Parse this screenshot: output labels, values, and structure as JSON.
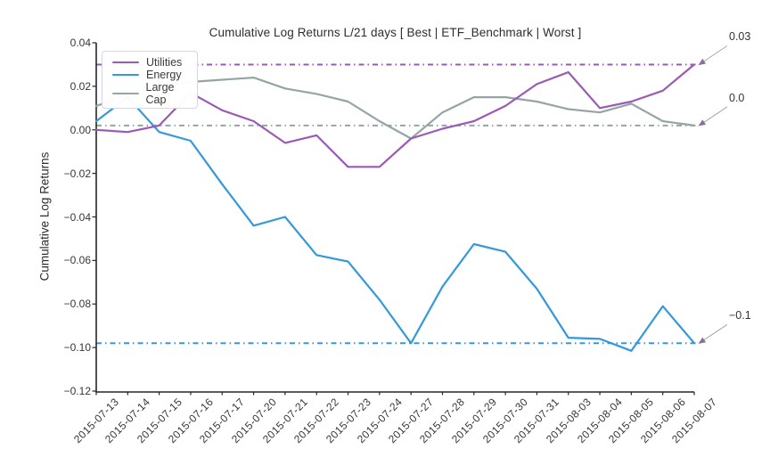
{
  "figure": {
    "title": "Cumulative Log Returns L/21 days [ Best | ETF_Benchmark | Worst ]",
    "ylabel": "Cumulative Log Returns"
  },
  "chart_data": {
    "type": "line",
    "title": "Cumulative Log Returns L/21 days [ Best | ETF_Benchmark | Worst ]",
    "xlabel": "",
    "ylabel": "Cumulative Log Returns",
    "ylim": [
      -0.12,
      0.04
    ],
    "grid": false,
    "legend_position": "upper left",
    "x": [
      "2015-07-13",
      "2015-07-14",
      "2015-07-15",
      "2015-07-16",
      "2015-07-17",
      "2015-07-20",
      "2015-07-21",
      "2015-07-22",
      "2015-07-23",
      "2015-07-24",
      "2015-07-27",
      "2015-07-28",
      "2015-07-29",
      "2015-07-30",
      "2015-07-31",
      "2015-08-03",
      "2015-08-04",
      "2015-08-05",
      "2015-08-06",
      "2015-08-07"
    ],
    "series": [
      {
        "name": "Utilities",
        "color": "#9b59b6",
        "values": [
          0.0,
          -0.001,
          0.002,
          0.017,
          0.009,
          0.004,
          -0.006,
          -0.0025,
          -0.017,
          -0.017,
          -0.004,
          0.0005,
          0.004,
          0.011,
          0.021,
          0.0265,
          0.01,
          0.013,
          0.018,
          0.03
        ]
      },
      {
        "name": "Energy",
        "color": "#3498db",
        "values": [
          0.004,
          0.015,
          -0.001,
          -0.005,
          -0.025,
          -0.044,
          -0.04,
          -0.0575,
          -0.0605,
          -0.078,
          -0.098,
          -0.072,
          -0.0525,
          -0.056,
          -0.073,
          -0.0955,
          -0.096,
          -0.1015,
          -0.081,
          -0.098
        ]
      },
      {
        "name": "Large Cap",
        "color": "#95a5a6",
        "values": [
          0.011,
          0.016,
          0.02,
          0.022,
          0.023,
          0.024,
          0.019,
          0.0165,
          0.013,
          0.004,
          -0.004,
          0.008,
          0.015,
          0.015,
          0.013,
          0.0095,
          0.008,
          0.012,
          0.004,
          0.002
        ]
      }
    ],
    "reference_lines": [
      {
        "series": "Utilities",
        "value": 0.03,
        "style": "dashdot",
        "label": "0.03"
      },
      {
        "series": "Large Cap",
        "value": 0.002,
        "style": "dashdot",
        "label": "0.0"
      },
      {
        "series": "Energy",
        "value": -0.098,
        "style": "dashdot",
        "label": "−0.1"
      }
    ],
    "yticks": [
      {
        "value": 0.04,
        "label": "0.04"
      },
      {
        "value": 0.02,
        "label": "0.02"
      },
      {
        "value": 0.0,
        "label": "0.00"
      },
      {
        "value": -0.02,
        "label": "−0.02"
      },
      {
        "value": -0.04,
        "label": "−0.04"
      },
      {
        "value": -0.06,
        "label": "−0.06"
      },
      {
        "value": -0.08,
        "label": "−0.08"
      },
      {
        "value": -0.1,
        "label": "−0.10"
      },
      {
        "value": -0.12,
        "label": "−0.12"
      }
    ],
    "annotation_arrow_color": "#999999",
    "annotation_arrowhead_color": "#8d6ba5",
    "axis_color": "#262626"
  }
}
